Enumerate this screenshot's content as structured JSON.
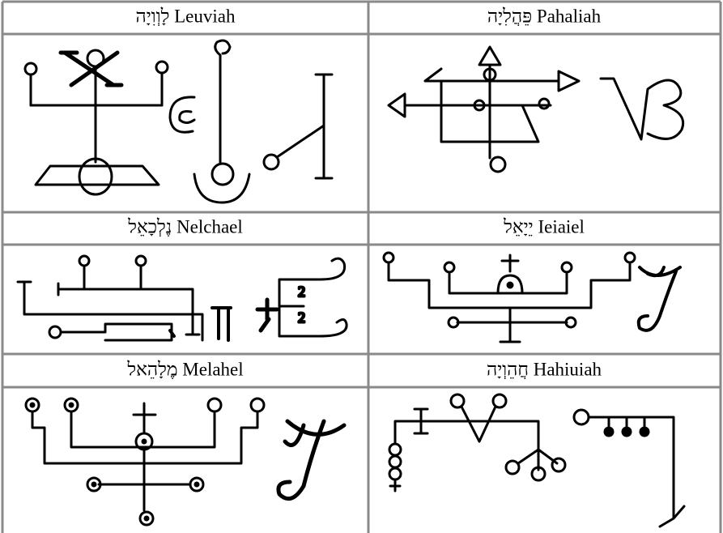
{
  "table": {
    "rows": [
      [
        "לָוְוִיָה Leuviah",
        "פֵּהֲלִיָה Pahaliah"
      ],
      [
        "נֶלְכָאֵל Nelchael",
        "יֵיָאֵל Ieiaiel"
      ],
      [
        "מֶלָהֵאל Melahel",
        "חֲהֵוְיָה Hahiuiah"
      ]
    ]
  }
}
